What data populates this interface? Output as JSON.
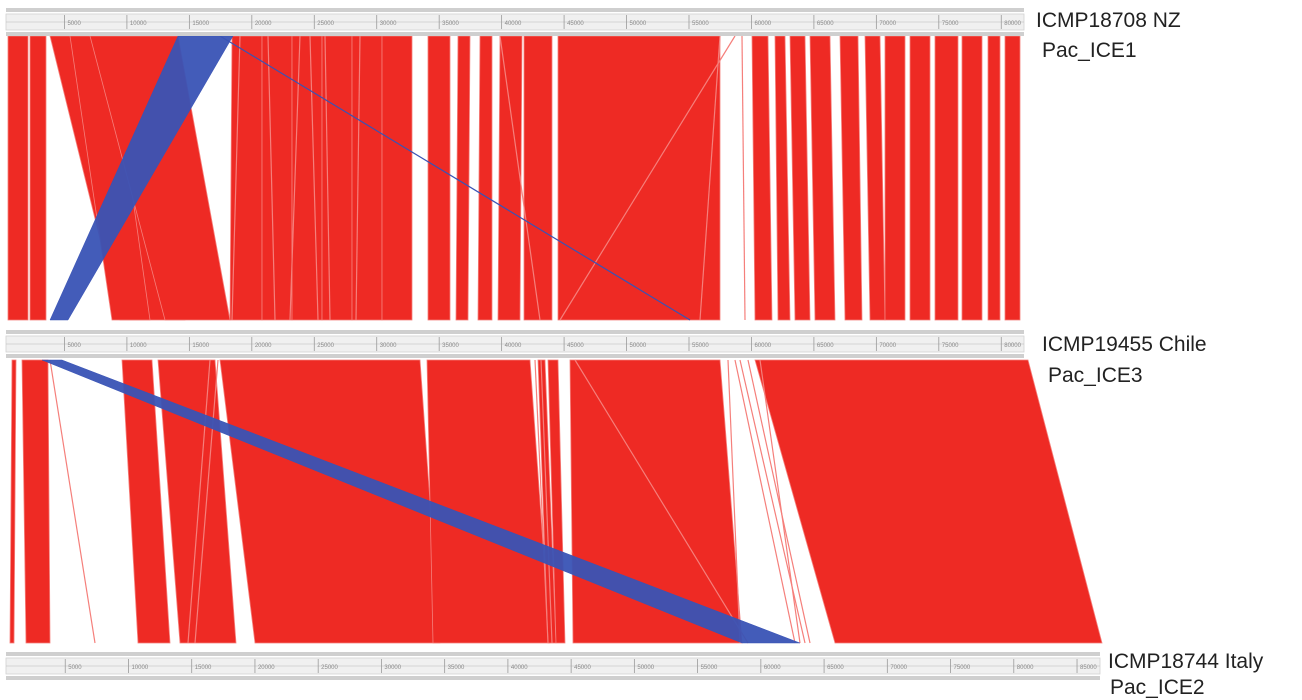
{
  "colors": {
    "direct_match": "#ee2a24",
    "direct_match_light": "#f57f7b",
    "inverted_match": "#3953b5",
    "ruler_fill": "#f0f0f0",
    "ruler_line": "#9a9a9a",
    "label_text": "#222222"
  },
  "genomes": [
    {
      "name": "ICMP18708 NZ",
      "element": "Pac_ICE1",
      "ruler_ticks": [
        "5000",
        "10000",
        "15000",
        "20000",
        "25000",
        "30000",
        "35000",
        "40000",
        "45000",
        "50000",
        "55000",
        "60000",
        "65000",
        "70000",
        "75000",
        "80000"
      ]
    },
    {
      "name": "ICMP19455 Chile",
      "element": "Pac_ICE3",
      "ruler_ticks": [
        "5000",
        "10000",
        "15000",
        "20000",
        "25000",
        "30000",
        "35000",
        "40000",
        "45000",
        "50000",
        "55000",
        "60000",
        "65000",
        "70000",
        "75000",
        "80000"
      ]
    },
    {
      "name": "ICMP18744 Italy",
      "element": "Pac_ICE2",
      "ruler_ticks": [
        "5000",
        "10000",
        "15000",
        "20000",
        "25000",
        "30000",
        "35000",
        "40000",
        "45000",
        "50000",
        "55000",
        "60000",
        "65000",
        "70000",
        "75000",
        "80000",
        "85000"
      ]
    }
  ],
  "comparisons": [
    {
      "name": "Pac_ICE1-vs-Pac_ICE3",
      "direct": [
        [
          8,
          28,
          8,
          28
        ],
        [
          30,
          46,
          30,
          46
        ],
        [
          50,
          120,
          120,
          185
        ],
        [
          70,
          110,
          112,
          150
        ],
        [
          90,
          178,
          165,
          230
        ],
        [
          232,
          262,
          230,
          262
        ],
        [
          262,
          292,
          262,
          292
        ],
        [
          292,
          322,
          292,
          322
        ],
        [
          322,
          352,
          322,
          352
        ],
        [
          352,
          382,
          352,
          382
        ],
        [
          382,
          412,
          382,
          412
        ],
        [
          428,
          450,
          428,
          450
        ],
        [
          458,
          470,
          456,
          468
        ],
        [
          480,
          492,
          478,
          492
        ],
        [
          500,
          522,
          498,
          520
        ],
        [
          524,
          552,
          524,
          552
        ],
        [
          558,
          720,
          558,
          720
        ],
        [
          752,
          768,
          755,
          772
        ],
        [
          775,
          785,
          778,
          790
        ],
        [
          790,
          805,
          795,
          810
        ],
        [
          810,
          830,
          815,
          835
        ],
        [
          840,
          858,
          845,
          862
        ],
        [
          865,
          880,
          870,
          885
        ],
        [
          885,
          905,
          885,
          905
        ],
        [
          910,
          930,
          910,
          930
        ],
        [
          935,
          958,
          935,
          958
        ],
        [
          962,
          982,
          962,
          982
        ],
        [
          988,
          1000,
          988,
          1000
        ],
        [
          1005,
          1020,
          1005,
          1020
        ]
      ],
      "lines": [
        [
          240,
          240,
          232,
          232
        ],
        [
          268,
          268,
          275,
          275
        ],
        [
          300,
          300,
          290,
          290
        ],
        [
          310,
          310,
          318,
          318
        ],
        [
          325,
          325,
          330,
          330
        ],
        [
          360,
          360,
          356,
          356
        ],
        [
          735,
          735,
          560,
          560
        ],
        [
          742,
          742,
          745,
          745
        ],
        [
          720,
          720,
          700,
          700
        ],
        [
          500,
          500,
          540,
          540
        ]
      ],
      "inverted": [
        [
          178,
          233,
          50,
          68
        ],
        [
          220,
          220,
          690,
          690
        ]
      ]
    },
    {
      "name": "Pac_ICE3-vs-Pac_ICE2",
      "direct": [
        [
          12,
          16,
          10,
          14
        ],
        [
          22,
          48,
          26,
          50
        ],
        [
          122,
          152,
          138,
          170
        ],
        [
          158,
          215,
          180,
          236
        ],
        [
          220,
          420,
          255,
          440
        ],
        [
          427,
          530,
          433,
          550
        ],
        [
          538,
          545,
          548,
          556
        ],
        [
          548,
          558,
          556,
          565
        ],
        [
          570,
          720,
          573,
          742
        ],
        [
          755,
          1028,
          835,
          1102
        ]
      ],
      "lines": [
        [
          50,
          50,
          95,
          95
        ],
        [
          210,
          210,
          188,
          188
        ],
        [
          218,
          218,
          195,
          195
        ],
        [
          575,
          575,
          748,
          748
        ],
        [
          535,
          535,
          548,
          548
        ],
        [
          541,
          541,
          552,
          552
        ],
        [
          728,
          728,
          740,
          740
        ],
        [
          735,
          735,
          795,
          795
        ],
        [
          748,
          748,
          810,
          810
        ],
        [
          760,
          760,
          800,
          800
        ],
        [
          740,
          740,
          805,
          805
        ]
      ],
      "inverted": [
        [
          42,
          62,
          742,
          800
        ]
      ]
    }
  ]
}
